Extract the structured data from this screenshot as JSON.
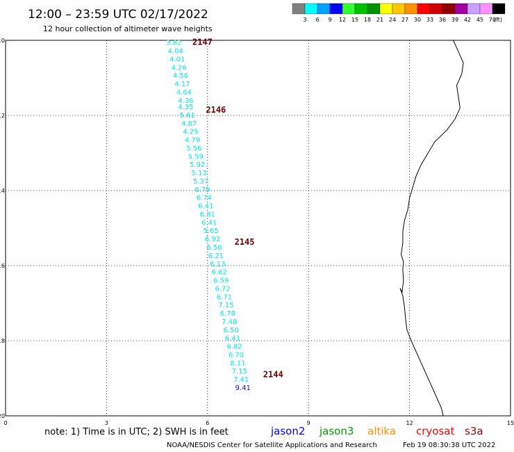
{
  "title": "12:00 – 23:59 UTC 02/17/2022",
  "subtitle": "12 hour collection of altimeter wave heights",
  "legend": {
    "labels": [
      "3",
      "6",
      "9",
      "12",
      "15",
      "18",
      "21",
      "24",
      "27",
      "30",
      "33",
      "36",
      "39",
      "42",
      "45",
      "70"
    ],
    "unit": "(ft)",
    "colors": [
      "#808080",
      "#00ffff",
      "#00a0ff",
      "#0000ff",
      "#30ff30",
      "#00c000",
      "#009000",
      "#ffff00",
      "#ffc800",
      "#ff9000",
      "#ff0000",
      "#d00000",
      "#900000",
      "#a000a0",
      "#c8a0ff",
      "#ff90ff",
      "#000000"
    ]
  },
  "map": {
    "x_ticks": [
      "0",
      "3",
      "6",
      "9",
      "12",
      "15"
    ],
    "y_ticks": [
      "-10",
      "-12",
      "-14",
      "-16",
      "-18",
      "-20"
    ],
    "lon_range": [
      0,
      15
    ],
    "lat_range": [
      -20,
      -10
    ]
  },
  "track": {
    "satellite": "cryosat",
    "color_low": "#00e8e8",
    "color_high": "#1010d0",
    "points": [
      {
        "lon": 5.0,
        "lat": -10.05,
        "swh": "3.82"
      },
      {
        "lon": 5.05,
        "lat": -10.27,
        "swh": "4.04"
      },
      {
        "lon": 5.1,
        "lat": -10.49,
        "swh": "4.01"
      },
      {
        "lon": 5.15,
        "lat": -10.71,
        "swh": "4.26"
      },
      {
        "lon": 5.2,
        "lat": -10.93,
        "swh": "4.56"
      },
      {
        "lon": 5.25,
        "lat": -11.15,
        "swh": "4.17"
      },
      {
        "lon": 5.3,
        "lat": -11.37,
        "swh": "4.64"
      },
      {
        "lon": 5.35,
        "lat": -11.59,
        "swh": "4.36"
      },
      {
        "lon": 5.35,
        "lat": -11.76,
        "swh": "4.35"
      },
      {
        "lon": 5.4,
        "lat": -11.98,
        "swh": "5.61"
      },
      {
        "lon": 5.45,
        "lat": -12.2,
        "swh": "4.87"
      },
      {
        "lon": 5.5,
        "lat": -12.42,
        "swh": "4.25"
      },
      {
        "lon": 5.55,
        "lat": -12.64,
        "swh": "4.79"
      },
      {
        "lon": 5.6,
        "lat": -12.86,
        "swh": "5.56"
      },
      {
        "lon": 5.65,
        "lat": -13.08,
        "swh": "5.59"
      },
      {
        "lon": 5.7,
        "lat": -13.3,
        "swh": "5.92"
      },
      {
        "lon": 5.75,
        "lat": -13.52,
        "swh": "5.13"
      },
      {
        "lon": 5.8,
        "lat": -13.74,
        "swh": "5.37"
      },
      {
        "lon": 5.85,
        "lat": -13.96,
        "swh": "6.79"
      },
      {
        "lon": 5.9,
        "lat": -14.18,
        "swh": "6.74"
      },
      {
        "lon": 5.95,
        "lat": -14.4,
        "swh": "6.41"
      },
      {
        "lon": 6.0,
        "lat": -14.62,
        "swh": "6.81"
      },
      {
        "lon": 6.05,
        "lat": -14.84,
        "swh": "6.41"
      },
      {
        "lon": 6.1,
        "lat": -15.06,
        "swh": "5.65"
      },
      {
        "lon": 6.15,
        "lat": -15.28,
        "swh": "6.92"
      },
      {
        "lon": 6.2,
        "lat": -15.5,
        "swh": "6.56"
      },
      {
        "lon": 6.25,
        "lat": -15.72,
        "swh": "6.21"
      },
      {
        "lon": 6.3,
        "lat": -15.94,
        "swh": "6.13"
      },
      {
        "lon": 6.35,
        "lat": -16.16,
        "swh": "6.62"
      },
      {
        "lon": 6.4,
        "lat": -16.38,
        "swh": "6.59"
      },
      {
        "lon": 6.45,
        "lat": -16.6,
        "swh": "6.72"
      },
      {
        "lon": 6.5,
        "lat": -16.82,
        "swh": "6.71"
      },
      {
        "lon": 6.55,
        "lat": -17.04,
        "swh": "7.15"
      },
      {
        "lon": 6.6,
        "lat": -17.26,
        "swh": "6.78"
      },
      {
        "lon": 6.65,
        "lat": -17.48,
        "swh": "7.48"
      },
      {
        "lon": 6.7,
        "lat": -17.7,
        "swh": "6.50"
      },
      {
        "lon": 6.75,
        "lat": -17.92,
        "swh": "6.41"
      },
      {
        "lon": 6.8,
        "lat": -18.14,
        "swh": "6.82"
      },
      {
        "lon": 6.85,
        "lat": -18.36,
        "swh": "6.70"
      },
      {
        "lon": 6.9,
        "lat": -18.58,
        "swh": "8.11"
      },
      {
        "lon": 6.95,
        "lat": -18.8,
        "swh": "7.15"
      },
      {
        "lon": 7.0,
        "lat": -19.02,
        "swh": "7.41"
      },
      {
        "lon": 7.05,
        "lat": -19.24,
        "swh": "9.41"
      }
    ],
    "time_labels": [
      {
        "text": "2147",
        "lon": 5.55,
        "lat": -10.05
      },
      {
        "text": "2146",
        "lon": 5.95,
        "lat": -11.85
      },
      {
        "text": "2145",
        "lon": 6.8,
        "lat": -15.37
      },
      {
        "text": "2144",
        "lon": 7.65,
        "lat": -18.9
      }
    ]
  },
  "coastline": [
    [
      13.3,
      -10.0
    ],
    [
      13.45,
      -10.3
    ],
    [
      13.6,
      -10.6
    ],
    [
      13.55,
      -10.9
    ],
    [
      13.4,
      -11.2
    ],
    [
      13.45,
      -11.5
    ],
    [
      13.5,
      -11.8
    ],
    [
      13.35,
      -12.1
    ],
    [
      13.1,
      -12.4
    ],
    [
      12.75,
      -12.7
    ],
    [
      12.55,
      -13.0
    ],
    [
      12.35,
      -13.3
    ],
    [
      12.2,
      -13.6
    ],
    [
      12.1,
      -13.9
    ],
    [
      12.0,
      -14.2
    ],
    [
      11.95,
      -14.5
    ],
    [
      11.85,
      -14.8
    ],
    [
      11.8,
      -15.1
    ],
    [
      11.8,
      -15.4
    ],
    [
      11.75,
      -15.7
    ],
    [
      11.82,
      -15.9
    ],
    [
      11.8,
      -16.1
    ],
    [
      11.82,
      -16.4
    ],
    [
      11.78,
      -16.7
    ],
    [
      11.72,
      -16.6
    ],
    [
      11.8,
      -16.8
    ],
    [
      11.85,
      -17.1
    ],
    [
      11.88,
      -17.4
    ],
    [
      11.92,
      -17.7
    ],
    [
      12.05,
      -18.0
    ],
    [
      12.2,
      -18.3
    ],
    [
      12.35,
      -18.6
    ],
    [
      12.5,
      -18.9
    ],
    [
      12.65,
      -19.2
    ],
    [
      12.8,
      -19.5
    ],
    [
      12.95,
      -19.8
    ],
    [
      13.0,
      -20.0
    ]
  ],
  "footer": {
    "note": "note: 1) Time is in UTC; 2) SWH is in feet",
    "satellites": [
      {
        "name": "jason2",
        "color": "#0000ff"
      },
      {
        "name": "jason3",
        "color": "#00a000"
      },
      {
        "name": "altika",
        "color": "#ff9000"
      },
      {
        "name": "cryosat",
        "color": "#ff0000"
      },
      {
        "name": "s3a",
        "color": "#a00000"
      }
    ],
    "credit": "NOAA/NESDIS Center for Satellite Applications and Research",
    "timestamp": "Feb 19 08:30:38 UTC 2022"
  }
}
